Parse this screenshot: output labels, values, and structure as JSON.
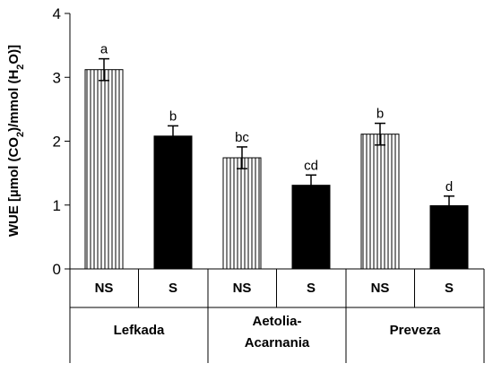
{
  "chart_data": {
    "type": "bar",
    "ylabel_parts": [
      "WUE [µmol (CO",
      "2",
      ")/mmol (H",
      "2",
      "O)]"
    ],
    "ylim": [
      0,
      4
    ],
    "yticks": [
      "0",
      "1",
      "2",
      "3",
      "4"
    ],
    "categories": [
      "NS",
      "S",
      "NS",
      "S",
      "NS",
      "S"
    ],
    "groups": [
      {
        "lines": [
          "Lefkada"
        ]
      },
      {
        "lines": [
          "Aetolia-",
          "Acarnania"
        ]
      },
      {
        "lines": [
          "Preveza"
        ]
      }
    ],
    "values": [
      3.12,
      2.08,
      1.74,
      1.31,
      2.11,
      0.99
    ],
    "errors": [
      0.17,
      0.16,
      0.17,
      0.16,
      0.17,
      0.15
    ],
    "significance": [
      "a",
      "b",
      "bc",
      "cd",
      "b",
      "d"
    ],
    "bar_style": [
      "striped",
      "solid",
      "striped",
      "solid",
      "striped",
      "solid"
    ],
    "colors": {
      "solid": "#000000",
      "stripe": "#000000",
      "background": "#ffffff"
    }
  }
}
